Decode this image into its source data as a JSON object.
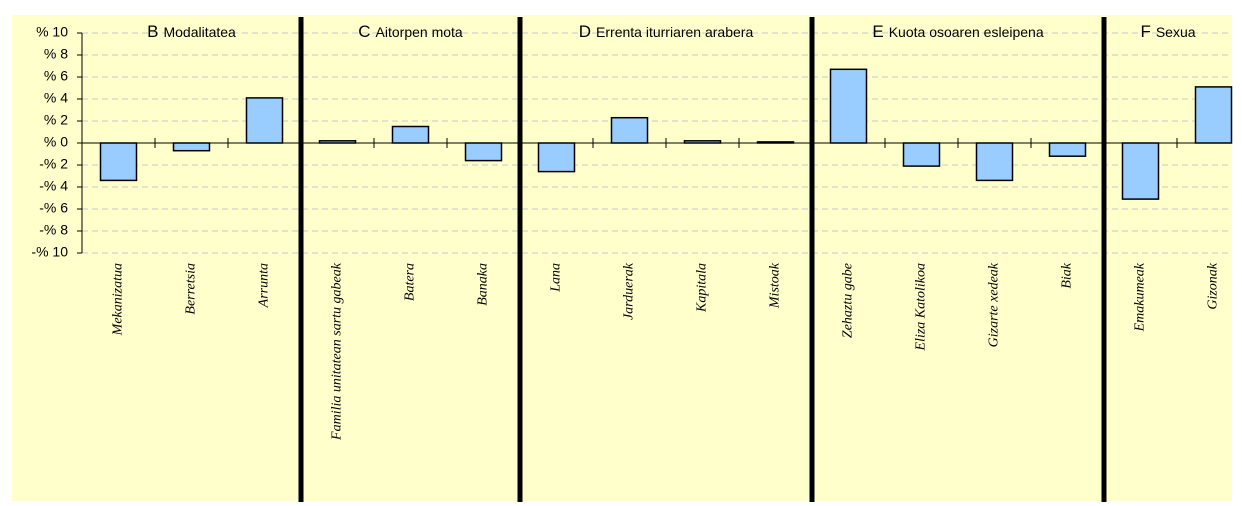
{
  "chart_data": {
    "type": "bar",
    "color": "#99ccff",
    "groups": [
      {
        "letter": "B",
        "name": "Modalitatea",
        "categories": [
          "Mekanizatua",
          "Berretsia",
          "Arrunta"
        ],
        "values": [
          -3.4,
          -0.7,
          4.1
        ]
      },
      {
        "letter": "C",
        "name": "Aitorpen mota",
        "categories": [
          "Familia unitatean sartu gabeak",
          "Batera",
          "Banaka"
        ],
        "values": [
          0.2,
          1.5,
          -1.6
        ]
      },
      {
        "letter": "D",
        "name": "Errenta iturriaren arabera",
        "categories": [
          "Lana",
          "Jarduerak",
          "Kapitala",
          "Mistoak"
        ],
        "values": [
          -2.6,
          2.3,
          0.2,
          0.1
        ]
      },
      {
        "letter": "E",
        "name": "Kuota osoaren esleipena",
        "categories": [
          "Zehaztu gabe",
          "Eliza Katolikoa",
          "Gizarte xedeak",
          "Biak"
        ],
        "values": [
          6.7,
          -2.1,
          -3.4,
          -1.2
        ]
      },
      {
        "letter": "F",
        "name": "Sexua",
        "categories": [
          "Emakumeak",
          "Gizonak"
        ],
        "values": [
          -5.1,
          5.1
        ]
      }
    ],
    "ylim": [
      -10,
      10
    ],
    "yticks": [
      {
        "value": -10,
        "label": "-% 10"
      },
      {
        "value": -8,
        "label": "-% 8"
      },
      {
        "value": -6,
        "label": "-% 6"
      },
      {
        "value": -4,
        "label": "-% 4"
      },
      {
        "value": -2,
        "label": "-% 2"
      },
      {
        "value": 0,
        "label": "% 0"
      },
      {
        "value": 2,
        "label": "% 2"
      },
      {
        "value": 4,
        "label": "% 4"
      },
      {
        "value": 6,
        "label": "% 6"
      },
      {
        "value": 8,
        "label": "% 8"
      },
      {
        "value": 10,
        "label": "% 10"
      }
    ],
    "grid": true
  }
}
